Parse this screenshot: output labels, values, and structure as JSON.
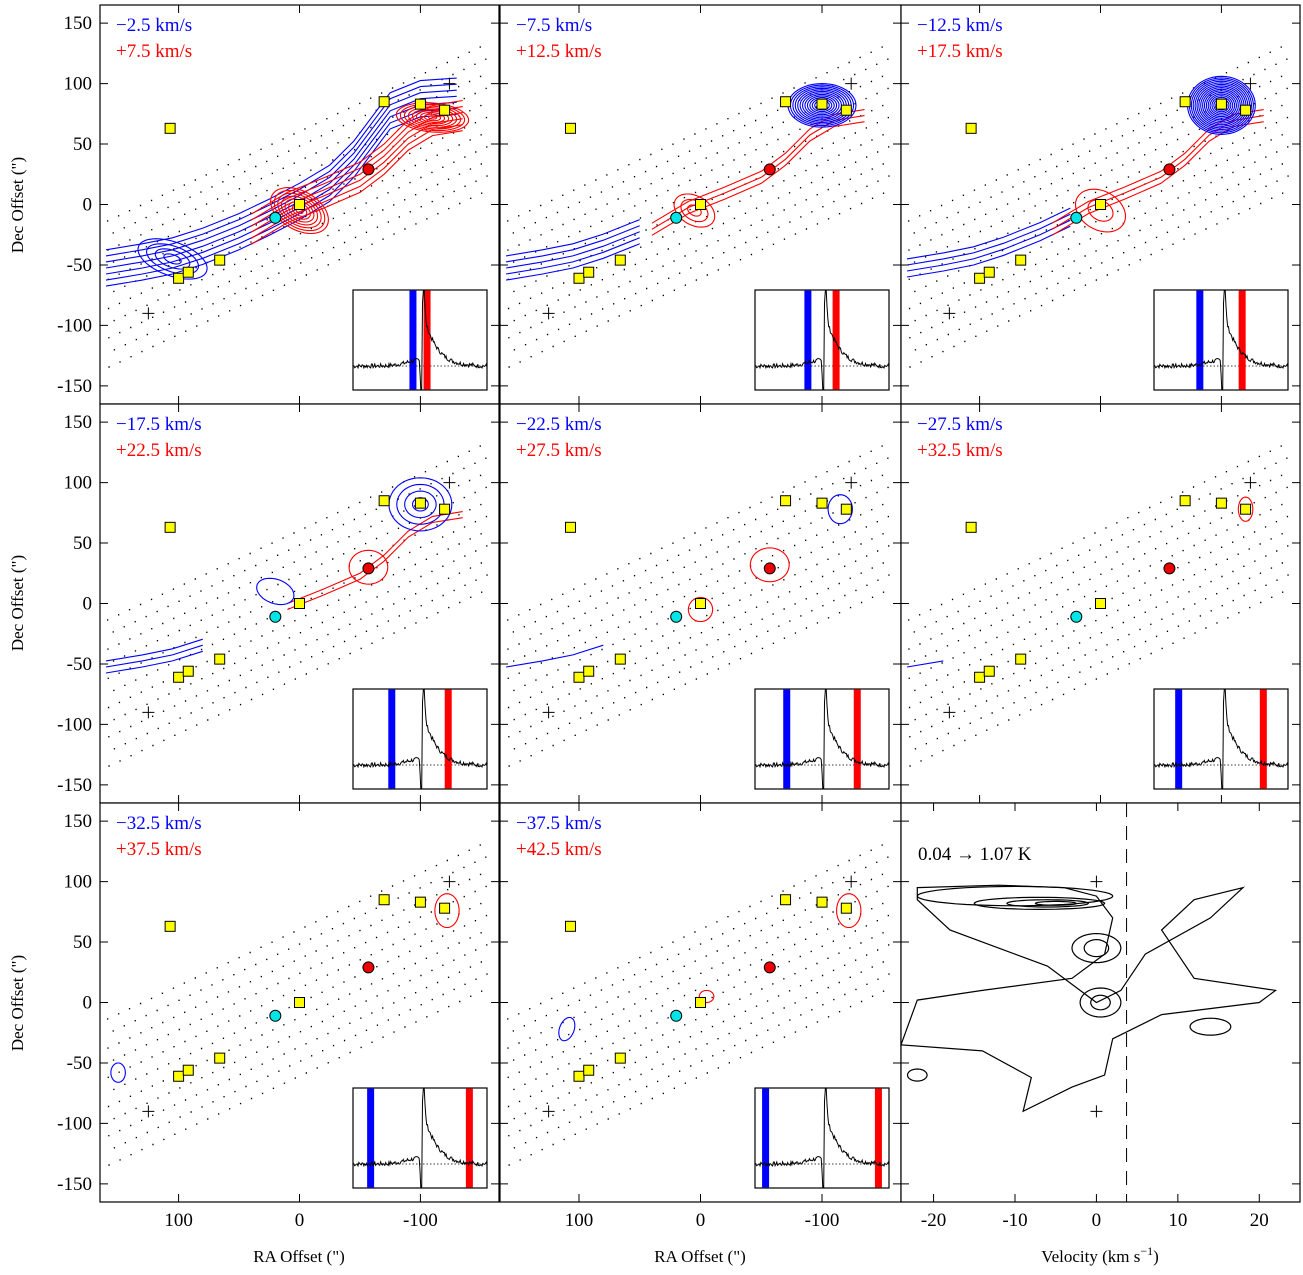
{
  "figure": {
    "y_axis_label": "Dec Offset (\")",
    "x_axis_label_maps": "RA Offset (\")",
    "x_axis_label_pv": "Velocity (km s",
    "x_axis_label_pv_sup": "−1",
    "x_axis_label_pv_end": ")"
  },
  "colors": {
    "blue": "#0000ff",
    "red": "#ff0000",
    "cyan": "#00e5e5",
    "yellow": "#ffff00",
    "redsource": "#ee0000"
  },
  "chart_data": [
    {
      "type": "contour-map",
      "panel": 1,
      "blue_label": "−2.5 km/s",
      "red_label": "+7.5 km/s",
      "xlabel": "",
      "ylabel": "Dec Offset (\")",
      "xlim": [
        165,
        -165
      ],
      "ylim": [
        -165,
        165
      ],
      "x_ticks": [
        100,
        0,
        -100
      ],
      "y_ticks": [
        150,
        100,
        50,
        0,
        -50,
        -100,
        -150
      ],
      "blue_vel": -2.5,
      "red_vel": 7.5
    },
    {
      "type": "contour-map",
      "panel": 2,
      "blue_label": "−7.5 km/s",
      "red_label": "+12.5 km/s",
      "xlim": [
        165,
        -165
      ],
      "ylim": [
        -165,
        165
      ],
      "blue_vel": -7.5,
      "red_vel": 12.5
    },
    {
      "type": "contour-map",
      "panel": 3,
      "blue_label": "−12.5 km/s",
      "red_label": "+17.5 km/s",
      "xlim": [
        165,
        -165
      ],
      "ylim": [
        -165,
        165
      ],
      "blue_vel": -12.5,
      "red_vel": 17.5
    },
    {
      "type": "contour-map",
      "panel": 4,
      "blue_label": "−17.5 km/s",
      "red_label": "+22.5 km/s",
      "xlim": [
        165,
        -165
      ],
      "ylim": [
        -165,
        165
      ],
      "blue_vel": -17.5,
      "red_vel": 22.5
    },
    {
      "type": "contour-map",
      "panel": 5,
      "blue_label": "−22.5 km/s",
      "red_label": "+27.5 km/s",
      "xlim": [
        165,
        -165
      ],
      "ylim": [
        -165,
        165
      ],
      "blue_vel": -22.5,
      "red_vel": 27.5
    },
    {
      "type": "contour-map",
      "panel": 6,
      "blue_label": "−27.5 km/s",
      "red_label": "+32.5 km/s",
      "xlim": [
        165,
        -165
      ],
      "ylim": [
        -165,
        165
      ],
      "blue_vel": -27.5,
      "red_vel": 32.5
    },
    {
      "type": "contour-map",
      "panel": 7,
      "blue_label": "−32.5 km/s",
      "red_label": "+37.5 km/s",
      "xlabel": "RA Offset (\")",
      "xlim": [
        165,
        -165
      ],
      "ylim": [
        -165,
        165
      ],
      "blue_vel": -32.5,
      "red_vel": 37.5
    },
    {
      "type": "contour-map",
      "panel": 8,
      "blue_label": "−37.5 km/s",
      "red_label": "+42.5 km/s",
      "xlabel": "RA Offset (\")",
      "xlim": [
        165,
        -165
      ],
      "ylim": [
        -165,
        165
      ],
      "blue_vel": -37.5,
      "red_vel": 42.5
    },
    {
      "type": "position-velocity",
      "panel": 9,
      "label": "0.04 → 1.07 K",
      "xlabel": "Velocity (km s−1)",
      "xlim": [
        -24,
        25
      ],
      "ylim": [
        -165,
        165
      ],
      "x_ticks": [
        -20,
        -10,
        0,
        10,
        20
      ],
      "systemic_velocity": 3.7,
      "markers": [
        {
          "x": 0,
          "y": 100
        },
        {
          "x": 0,
          "y": -90
        }
      ]
    }
  ],
  "sources": {
    "yellow_squares": [
      [
        107,
        63
      ],
      [
        100,
        -61
      ],
      [
        92,
        -56
      ],
      [
        66,
        -46
      ],
      [
        0,
        0
      ],
      [
        -70,
        85
      ],
      [
        -100,
        83
      ],
      [
        -120,
        78
      ]
    ],
    "cyan_circle": [
      20,
      -11
    ],
    "red_circle": [
      -57,
      29
    ],
    "plus_markers": [
      [
        -124,
        100
      ],
      [
        125,
        -90
      ]
    ]
  },
  "spectrum_inset": {
    "v_min": -45,
    "v_max": 50,
    "systemic": 3.7
  }
}
